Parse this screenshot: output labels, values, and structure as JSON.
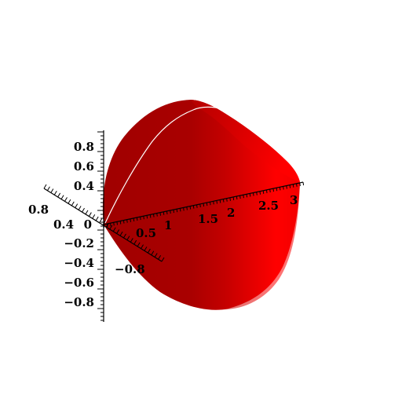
{
  "chart_data": {
    "type": "surface3d",
    "title": "",
    "surface_color": "#ff0000",
    "axes": {
      "x": {
        "ticks": [
          0.5,
          1,
          1.5,
          2,
          2.5,
          3
        ],
        "tick_labels": [
          "0.5",
          "1",
          "1.5",
          "2",
          "2.5",
          "3"
        ],
        "range": [
          0,
          3.14
        ]
      },
      "y": {
        "ticks": [
          0.8,
          0.4,
          -0.8
        ],
        "tick_labels": [
          "0.8",
          "0.4",
          "−0.8"
        ],
        "range": [
          -0.8,
          0.9
        ]
      },
      "z": {
        "ticks": [
          0.8,
          0.6,
          0.4,
          0,
          -0.2,
          -0.4,
          -0.6,
          -0.8
        ],
        "tick_labels": [
          "0.8",
          "0.6",
          "0.4",
          "0",
          "−0.2",
          "−0.4",
          "−0.6",
          "−0.8"
        ],
        "range": [
          -1,
          1
        ]
      }
    },
    "grid": false,
    "legend": "none"
  }
}
